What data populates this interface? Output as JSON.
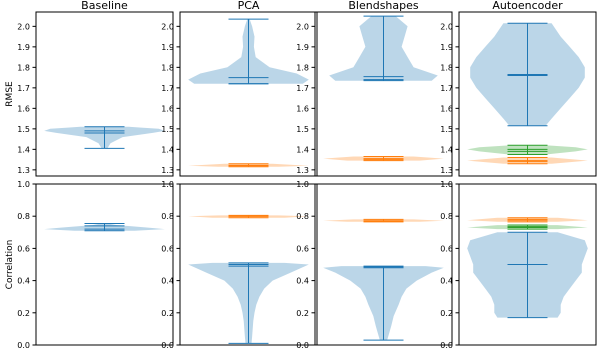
{
  "figure": {
    "columns": [
      "Baseline",
      "PCA",
      "Blendshapes",
      "Autoencoder"
    ],
    "rows": [
      "RMSE",
      "Correlation"
    ]
  },
  "colors": {
    "blue_fill": "#1f77b4",
    "blue_line": "#1f77b4",
    "orange": "#ff7f0e",
    "green": "#2ca02c",
    "axis": "#000000"
  },
  "chart_data": [
    {
      "type": "violin",
      "title": "Baseline",
      "ylabel": "RMSE",
      "ylim": [
        1.27,
        2.07
      ],
      "yticks": [
        "1.3",
        "1.4",
        "1.5",
        "1.6",
        "1.7",
        "1.8",
        "1.9",
        "2.0"
      ],
      "violins": [
        {
          "color": "blue",
          "min": 1.405,
          "max": 1.51,
          "mean": 1.49,
          "median": 1.48,
          "density": [
            [
              1.405,
              0.05
            ],
            [
              1.43,
              0.1
            ],
            [
              1.46,
              0.3
            ],
            [
              1.48,
              0.8
            ],
            [
              1.49,
              1.0
            ],
            [
              1.5,
              0.9
            ],
            [
              1.51,
              0.4
            ]
          ]
        }
      ]
    },
    {
      "type": "violin",
      "title": "PCA",
      "ylabel": "",
      "ylim": [
        1.27,
        2.07
      ],
      "yticks": [
        "1.3",
        "1.4",
        "1.5",
        "1.6",
        "1.7",
        "1.8",
        "1.9",
        "2.0"
      ],
      "violins": [
        {
          "color": "blue",
          "min": 1.72,
          "max": 2.035,
          "mean": 1.75,
          "median": 1.72,
          "density": [
            [
              1.72,
              0.9
            ],
            [
              1.74,
              1.0
            ],
            [
              1.77,
              0.8
            ],
            [
              1.8,
              0.35
            ],
            [
              1.85,
              0.12
            ],
            [
              1.9,
              0.09
            ],
            [
              1.95,
              0.1
            ],
            [
              2.0,
              0.06
            ],
            [
              2.035,
              0.02
            ]
          ]
        },
        {
          "color": "orange",
          "min": 1.315,
          "max": 1.33,
          "mean": 1.322,
          "median": 1.32,
          "density": [
            [
              1.315,
              0.5
            ],
            [
              1.32,
              1.0
            ],
            [
              1.33,
              0.4
            ]
          ]
        }
      ]
    },
    {
      "type": "violin",
      "title": "Blendshapes",
      "ylabel": "",
      "ylim": [
        1.27,
        2.07
      ],
      "yticks": [
        "1.3",
        "1.4",
        "1.5",
        "1.6",
        "1.7",
        "1.8",
        "1.9",
        "2.0"
      ],
      "violins": [
        {
          "color": "blue",
          "min": 1.735,
          "max": 2.05,
          "mean": 1.755,
          "median": 1.74,
          "density": [
            [
              1.735,
              0.8
            ],
            [
              1.76,
              0.9
            ],
            [
              1.8,
              0.5
            ],
            [
              1.85,
              0.4
            ],
            [
              1.9,
              0.3
            ],
            [
              1.95,
              0.35
            ],
            [
              2.0,
              0.4
            ],
            [
              2.05,
              0.2
            ]
          ]
        },
        {
          "color": "orange",
          "min": 1.345,
          "max": 1.365,
          "mean": 1.355,
          "median": 1.35,
          "density": [
            [
              1.345,
              0.6
            ],
            [
              1.355,
              1.0
            ],
            [
              1.365,
              0.5
            ]
          ]
        }
      ]
    },
    {
      "type": "violin",
      "title": "Autoencoder",
      "ylabel": "",
      "ylim": [
        1.27,
        2.07
      ],
      "yticks": [
        "1.3",
        "1.4",
        "1.5",
        "1.6",
        "1.7",
        "1.8",
        "1.9",
        "2.0"
      ],
      "violins": [
        {
          "color": "blue",
          "min": 1.515,
          "max": 2.015,
          "mean": 1.765,
          "median": 1.76,
          "density": [
            [
              1.515,
              0.3
            ],
            [
              1.55,
              0.4
            ],
            [
              1.6,
              0.55
            ],
            [
              1.65,
              0.7
            ],
            [
              1.7,
              0.85
            ],
            [
              1.75,
              0.95
            ],
            [
              1.8,
              0.95
            ],
            [
              1.85,
              0.85
            ],
            [
              1.9,
              0.7
            ],
            [
              1.95,
              0.55
            ],
            [
              2.015,
              0.4
            ]
          ]
        },
        {
          "color": "green",
          "min": 1.375,
          "max": 1.42,
          "mean": 1.4,
          "median": 1.39,
          "density": [
            [
              1.375,
              0.3
            ],
            [
              1.39,
              0.8
            ],
            [
              1.4,
              1.0
            ],
            [
              1.41,
              0.8
            ],
            [
              1.42,
              0.3
            ]
          ]
        },
        {
          "color": "orange",
          "min": 1.33,
          "max": 1.36,
          "mean": 1.345,
          "median": 1.34,
          "density": [
            [
              1.33,
              0.4
            ],
            [
              1.345,
              1.0
            ],
            [
              1.36,
              0.4
            ]
          ]
        }
      ]
    },
    {
      "type": "violin",
      "title": "",
      "ylabel": "Correlation",
      "ylim": [
        0,
        1
      ],
      "yticks": [
        "0.0",
        "0.2",
        "0.4",
        "0.6",
        "0.8",
        "1.0"
      ],
      "violins": [
        {
          "color": "blue",
          "min": 0.71,
          "max": 0.755,
          "mean": 0.74,
          "median": 0.72,
          "density": [
            [
              0.71,
              0.5
            ],
            [
              0.72,
              1.0
            ],
            [
              0.73,
              0.7
            ],
            [
              0.745,
              0.2
            ],
            [
              0.755,
              0.05
            ]
          ]
        }
      ]
    },
    {
      "type": "violin",
      "title": "",
      "ylabel": "",
      "ylim": [
        0,
        1
      ],
      "yticks": [
        "0.0",
        "0.2",
        "0.4",
        "0.6",
        "0.8",
        "1.0"
      ],
      "violins": [
        {
          "color": "blue",
          "min": 0.01,
          "max": 0.51,
          "mean": 0.49,
          "median": 0.5,
          "density": [
            [
              0.01,
              0.05
            ],
            [
              0.05,
              0.06
            ],
            [
              0.1,
              0.07
            ],
            [
              0.15,
              0.08
            ],
            [
              0.2,
              0.1
            ],
            [
              0.25,
              0.13
            ],
            [
              0.3,
              0.18
            ],
            [
              0.35,
              0.26
            ],
            [
              0.4,
              0.4
            ],
            [
              0.45,
              0.7
            ],
            [
              0.5,
              1.0
            ],
            [
              0.51,
              0.6
            ]
          ]
        },
        {
          "color": "orange",
          "min": 0.79,
          "max": 0.805,
          "mean": 0.8,
          "median": 0.8,
          "density": [
            [
              0.79,
              0.6
            ],
            [
              0.8,
              1.0
            ],
            [
              0.805,
              0.5
            ]
          ]
        }
      ]
    },
    {
      "type": "violin",
      "title": "",
      "ylabel": "",
      "ylim": [
        0,
        1
      ],
      "yticks": [
        "0.0",
        "0.2",
        "0.4",
        "0.6",
        "0.8",
        "1.0"
      ],
      "violins": [
        {
          "color": "blue",
          "min": 0.03,
          "max": 0.49,
          "mean": 0.485,
          "median": 0.48,
          "density": [
            [
              0.03,
              0.06
            ],
            [
              0.08,
              0.1
            ],
            [
              0.12,
              0.13
            ],
            [
              0.18,
              0.17
            ],
            [
              0.25,
              0.25
            ],
            [
              0.3,
              0.3
            ],
            [
              0.35,
              0.38
            ],
            [
              0.4,
              0.55
            ],
            [
              0.45,
              0.8
            ],
            [
              0.48,
              1.0
            ],
            [
              0.49,
              0.7
            ]
          ]
        },
        {
          "color": "orange",
          "min": 0.765,
          "max": 0.78,
          "mean": 0.772,
          "median": 0.77,
          "density": [
            [
              0.765,
              0.6
            ],
            [
              0.772,
              1.0
            ],
            [
              0.78,
              0.5
            ]
          ]
        }
      ]
    },
    {
      "type": "violin",
      "title": "",
      "ylabel": "",
      "ylim": [
        0,
        1
      ],
      "yticks": [
        "0.0",
        "0.2",
        "0.4",
        "0.6",
        "0.8",
        "1.0"
      ],
      "violins": [
        {
          "color": "blue",
          "min": 0.17,
          "max": 0.7,
          "mean": 0.5,
          "median": 0.5,
          "density": [
            [
              0.17,
              0.5
            ],
            [
              0.2,
              0.55
            ],
            [
              0.25,
              0.55
            ],
            [
              0.3,
              0.6
            ],
            [
              0.35,
              0.7
            ],
            [
              0.4,
              0.8
            ],
            [
              0.45,
              0.9
            ],
            [
              0.5,
              0.9
            ],
            [
              0.55,
              0.95
            ],
            [
              0.6,
              1.0
            ],
            [
              0.65,
              0.95
            ],
            [
              0.7,
              0.5
            ]
          ]
        },
        {
          "color": "orange",
          "min": 0.765,
          "max": 0.79,
          "mean": 0.78,
          "median": 0.775,
          "density": [
            [
              0.765,
              0.5
            ],
            [
              0.775,
              1.0
            ],
            [
              0.79,
              0.5
            ]
          ]
        },
        {
          "color": "green",
          "min": 0.72,
          "max": 0.745,
          "mean": 0.735,
          "median": 0.73,
          "density": [
            [
              0.72,
              0.5
            ],
            [
              0.73,
              1.0
            ],
            [
              0.745,
              0.5
            ]
          ]
        }
      ]
    }
  ]
}
